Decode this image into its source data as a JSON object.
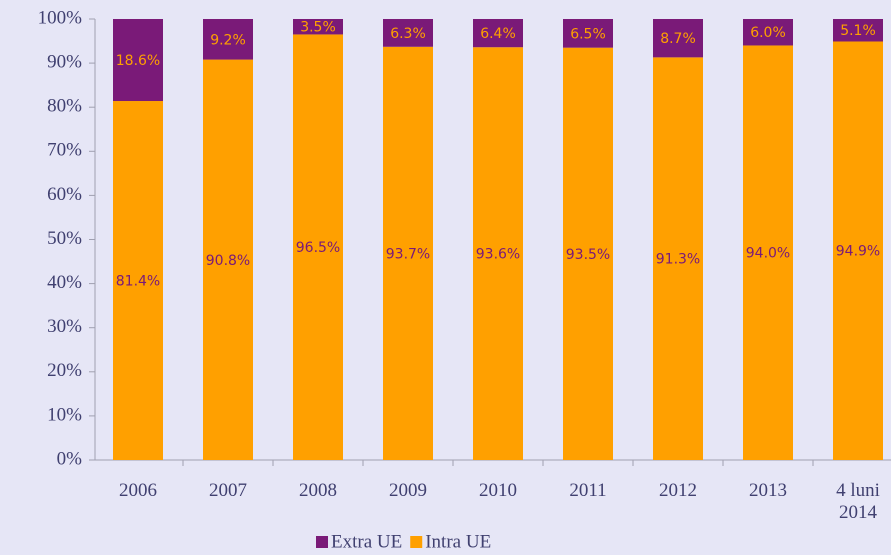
{
  "chart_data": {
    "type": "stacked_bar",
    "categories": [
      "2006",
      "2007",
      "2008",
      "2009",
      "2010",
      "2011",
      "2012",
      "2013",
      "4 luni 2014"
    ],
    "series": [
      {
        "name": "Extra UE",
        "color": "#7a1a78",
        "label_color": "#ffa000",
        "values": [
          18.6,
          9.2,
          3.5,
          6.3,
          6.4,
          6.5,
          8.7,
          6.0,
          5.1
        ],
        "value_labels": [
          "18.6%",
          "9.2%",
          "3.5%",
          "6.3%",
          "6.4%",
          "6.5%",
          "8.7%",
          "6.0%",
          "5.1%"
        ]
      },
      {
        "name": "Intra UE",
        "color": "#ffa000",
        "label_color": "#7a1a78",
        "values": [
          81.4,
          90.8,
          96.5,
          93.7,
          93.6,
          93.5,
          91.3,
          94.0,
          94.9
        ],
        "value_labels": [
          "81.4%",
          "90.8%",
          "96.5%",
          "93.7%",
          "93.6%",
          "93.5%",
          "91.3%",
          "94.0%",
          "94.9%"
        ]
      }
    ],
    "ylim": [
      0,
      100
    ],
    "yticks": [
      {
        "value": 0,
        "label": "0%"
      },
      {
        "value": 10,
        "label": "10%"
      },
      {
        "value": 20,
        "label": "20%"
      },
      {
        "value": 30,
        "label": "30%"
      },
      {
        "value": 40,
        "label": "40%"
      },
      {
        "value": 50,
        "label": "50%"
      },
      {
        "value": 60,
        "label": "60%"
      },
      {
        "value": 70,
        "label": "70%"
      },
      {
        "value": 80,
        "label": "80%"
      },
      {
        "value": 90,
        "label": "90%"
      },
      {
        "value": 100,
        "label": "100%"
      }
    ],
    "legend": "bottom"
  }
}
